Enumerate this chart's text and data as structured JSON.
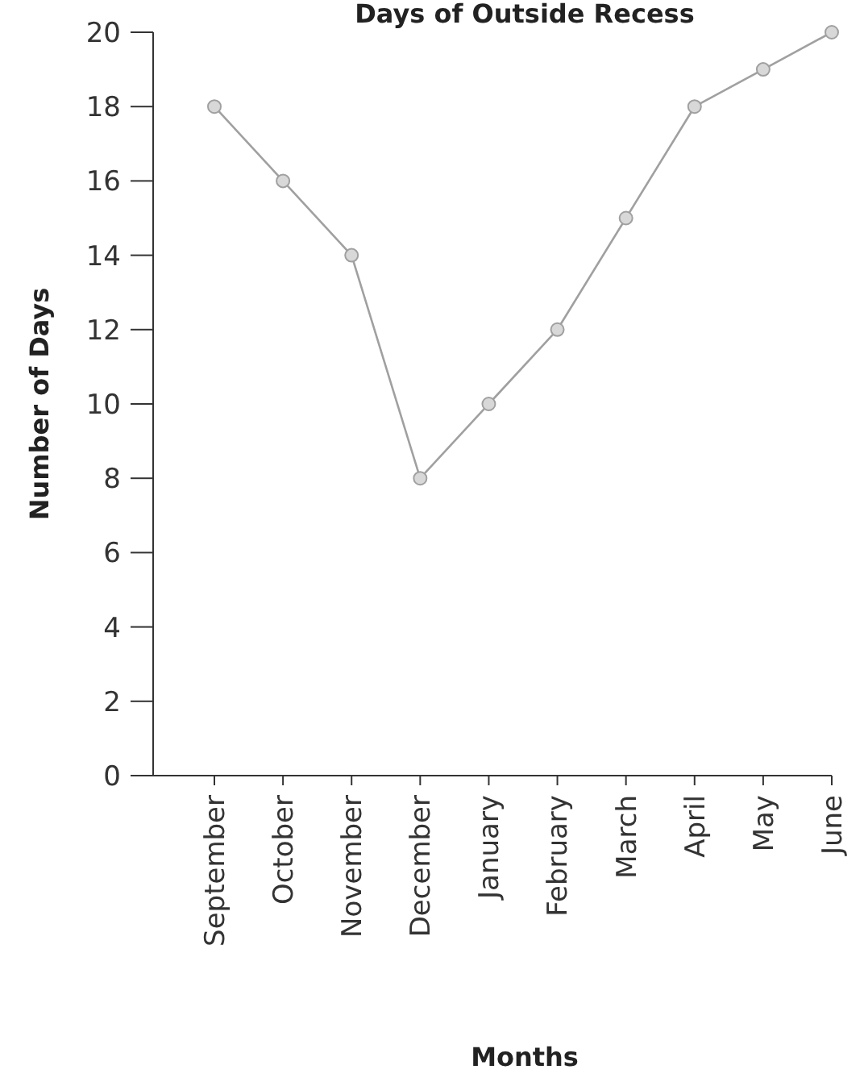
{
  "chart_data": {
    "type": "line",
    "title": "Days of Outside Recess",
    "xlabel": "Months",
    "ylabel": "Number of Days",
    "categories": [
      "September",
      "October",
      "November",
      "December",
      "January",
      "February",
      "March",
      "April",
      "May",
      "June"
    ],
    "series": [
      {
        "color": "#a0a0a0",
        "values": [
          18,
          16,
          14,
          8,
          10,
          12,
          15,
          18,
          19,
          20
        ]
      }
    ],
    "ylim": [
      0,
      20
    ],
    "yticks": [
      0,
      2,
      4,
      6,
      8,
      10,
      12,
      14,
      16,
      18,
      20
    ],
    "marker": "circle",
    "line_style": "solid"
  }
}
